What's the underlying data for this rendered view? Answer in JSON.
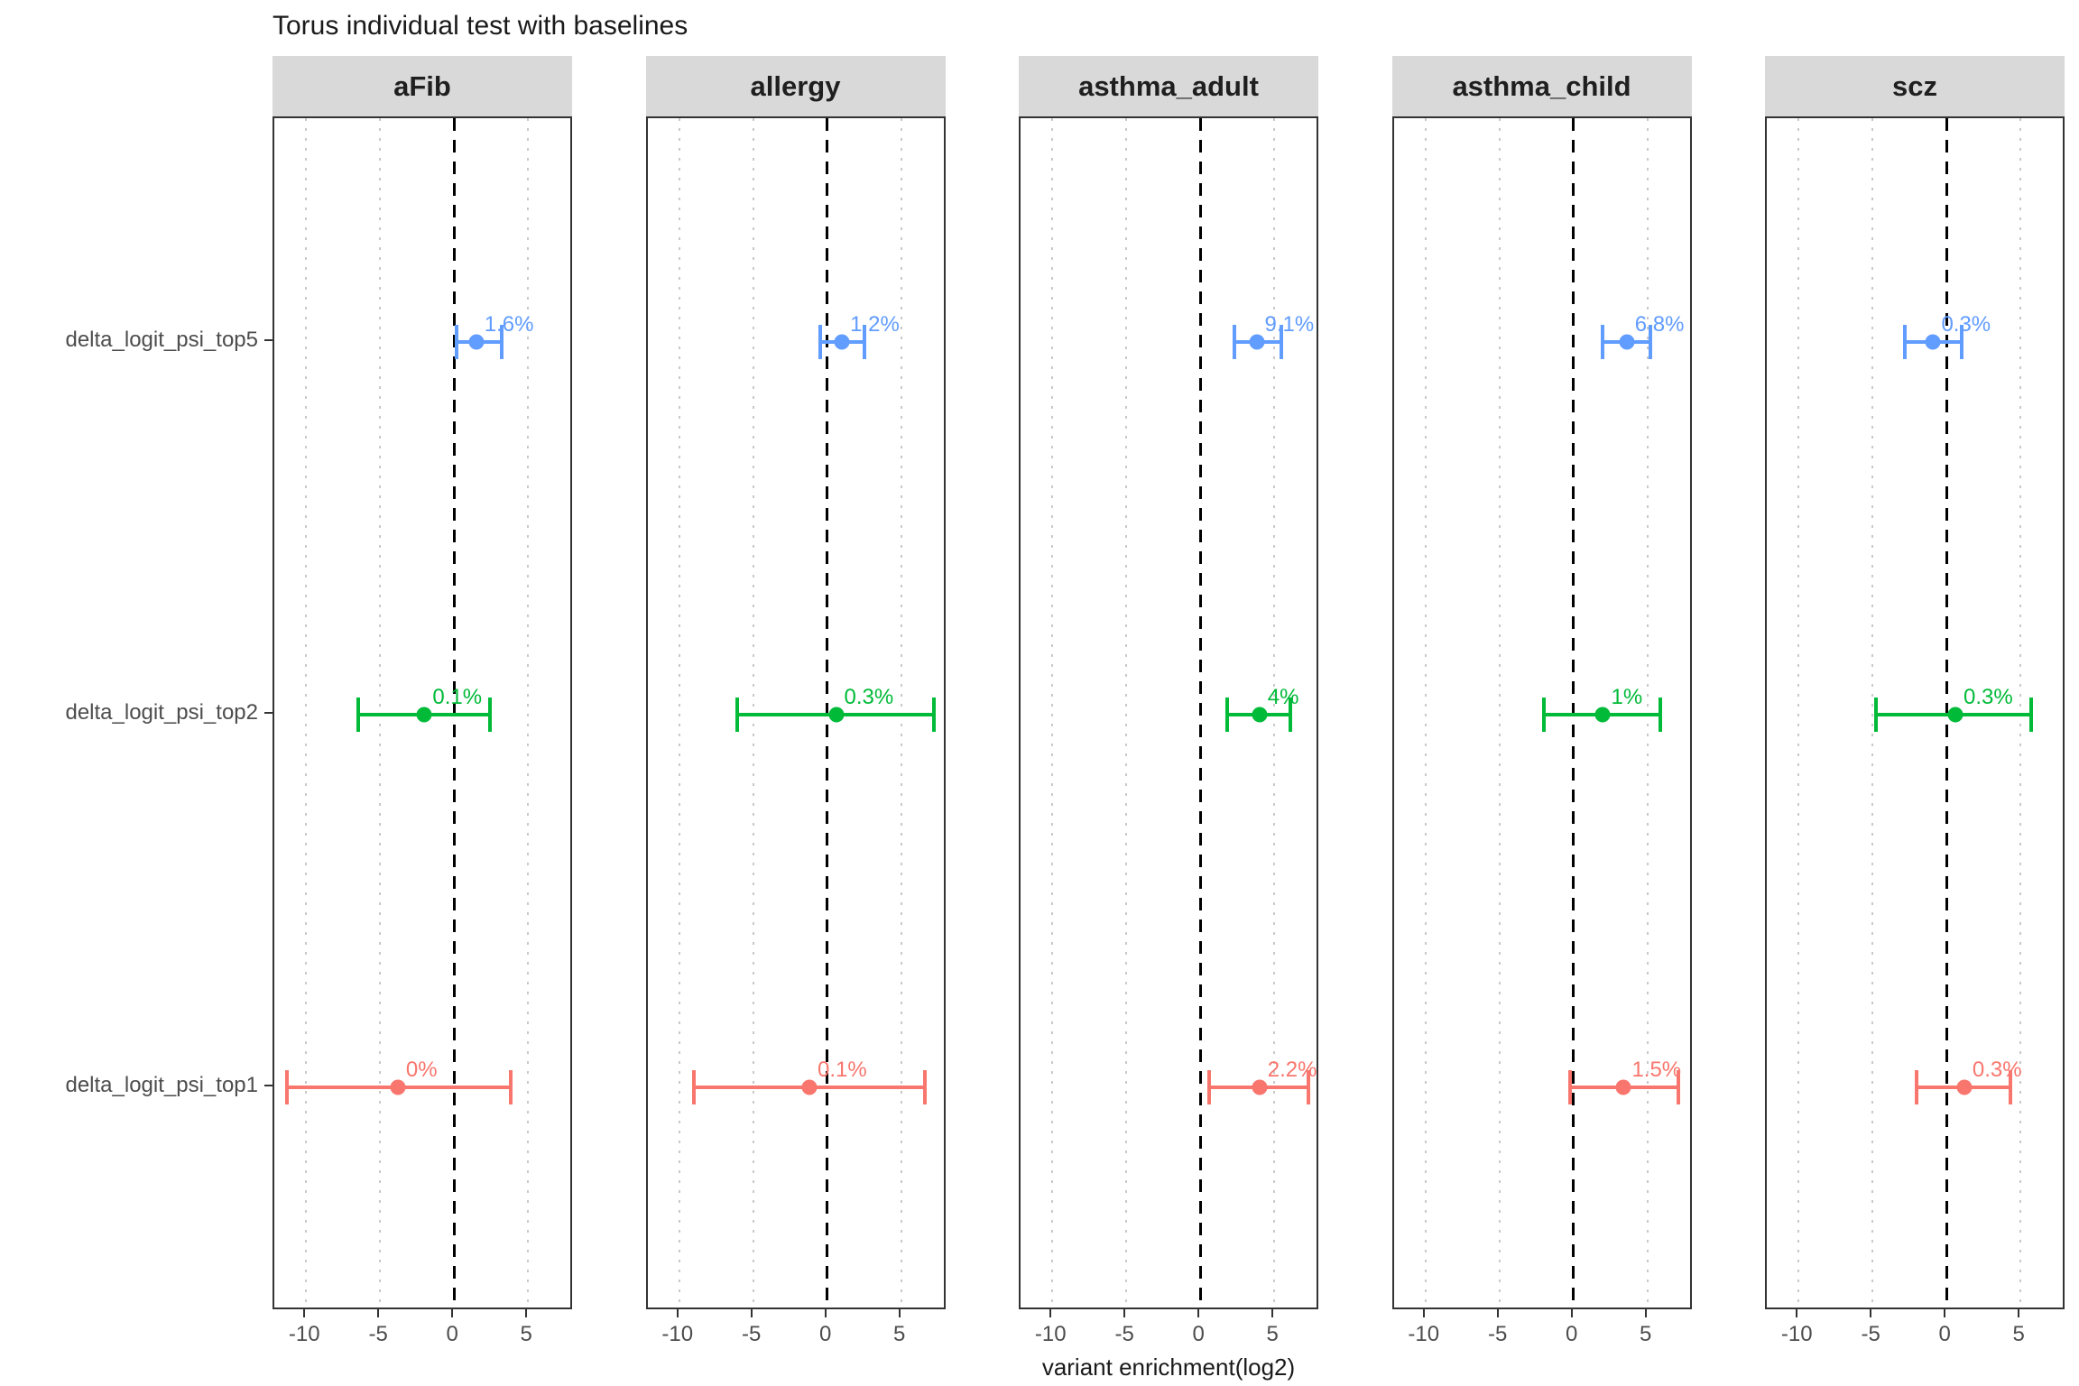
{
  "title": "Torus individual test with baselines",
  "chart_data": {
    "type": "pointrange",
    "title": "Torus individual test with baselines",
    "xlabel": "variant enrichment(log2)",
    "ylabel": "",
    "xlim": [
      -12.15,
      8.1
    ],
    "x_ticks": [
      -10,
      -5,
      0,
      5
    ],
    "grid": "dotted light-gray vertical lines at -10,-5,5; dashed black vertical line at 0",
    "legend_position": "none",
    "facet_titles": [
      "aFib",
      "allergy",
      "asthma_adult",
      "asthma_child",
      "scz"
    ],
    "y_categories_top_to_bottom": [
      "delta_logit_psi_top5",
      "delta_logit_psi_top2",
      "delta_logit_psi_top1"
    ],
    "series_colors": {
      "delta_logit_psi_top5": "#619CFF",
      "delta_logit_psi_top2": "#00BA38",
      "delta_logit_psi_top1": "#F8766D"
    },
    "facets": [
      {
        "name": "aFib",
        "points": [
          {
            "row": "delta_logit_psi_top5",
            "estimate": 1.5,
            "lower": 0.2,
            "upper": 3.2,
            "label": "1.6%"
          },
          {
            "row": "delta_logit_psi_top2",
            "estimate": -2.0,
            "lower": -6.5,
            "upper": 2.4,
            "label": "0.1%"
          },
          {
            "row": "delta_logit_psi_top1",
            "estimate": -3.8,
            "lower": -11.3,
            "upper": 3.8,
            "label": "0%"
          }
        ]
      },
      {
        "name": "allergy",
        "points": [
          {
            "row": "delta_logit_psi_top5",
            "estimate": 1.0,
            "lower": -0.5,
            "upper": 2.5,
            "label": "1.2%"
          },
          {
            "row": "delta_logit_psi_top2",
            "estimate": 0.6,
            "lower": -6.1,
            "upper": 7.2,
            "label": "0.3%"
          },
          {
            "row": "delta_logit_psi_top1",
            "estimate": -1.2,
            "lower": -9.0,
            "upper": 6.6,
            "label": "0.1%"
          }
        ]
      },
      {
        "name": "asthma_adult",
        "points": [
          {
            "row": "delta_logit_psi_top5",
            "estimate": 3.8,
            "lower": 2.3,
            "upper": 5.5,
            "label": "9.1%"
          },
          {
            "row": "delta_logit_psi_top2",
            "estimate": 4.0,
            "lower": 1.8,
            "upper": 6.1,
            "label": "4%"
          },
          {
            "row": "delta_logit_psi_top1",
            "estimate": 4.0,
            "lower": 0.6,
            "upper": 7.3,
            "label": "2.2%"
          }
        ]
      },
      {
        "name": "asthma_child",
        "points": [
          {
            "row": "delta_logit_psi_top5",
            "estimate": 3.6,
            "lower": 2.0,
            "upper": 5.2,
            "label": "6.8%"
          },
          {
            "row": "delta_logit_psi_top2",
            "estimate": 2.0,
            "lower": -2.0,
            "upper": 5.9,
            "label": "1%"
          },
          {
            "row": "delta_logit_psi_top1",
            "estimate": 3.4,
            "lower": -0.2,
            "upper": 7.1,
            "label": "1.5%"
          }
        ]
      },
      {
        "name": "scz",
        "points": [
          {
            "row": "delta_logit_psi_top5",
            "estimate": -0.9,
            "lower": -2.8,
            "upper": 1.0,
            "label": "0.3%"
          },
          {
            "row": "delta_logit_psi_top2",
            "estimate": 0.6,
            "lower": -4.8,
            "upper": 5.7,
            "label": "0.3%"
          },
          {
            "row": "delta_logit_psi_top1",
            "estimate": 1.2,
            "lower": -2.0,
            "upper": 4.3,
            "label": "0.3%"
          }
        ]
      }
    ],
    "colors": {
      "strip_bg": "#D9D9D9",
      "strip_text": "#1f1f1f",
      "zero_line": "#000000",
      "gridline": "#C9C9C9",
      "axis_text": "#4D4D4D",
      "panel_border": "#333333"
    }
  }
}
